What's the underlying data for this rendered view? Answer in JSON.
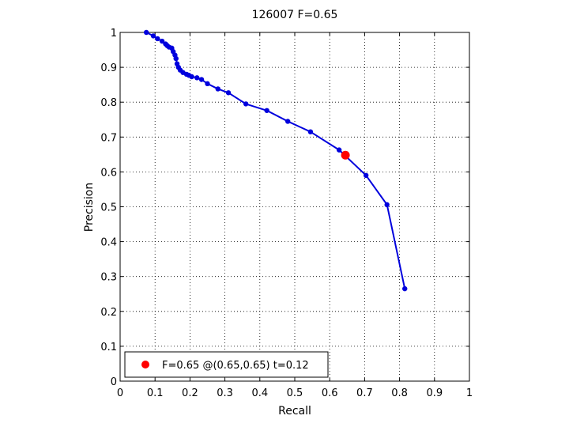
{
  "chart_data": {
    "type": "line",
    "title": "126007 F=0.65",
    "xlabel": "Recall",
    "ylabel": "Precision",
    "xlim": [
      0,
      1
    ],
    "ylim": [
      0,
      1
    ],
    "grid": true,
    "legend_position": "bottom-left",
    "xticks": [
      "0",
      "0.1",
      "0.2",
      "0.3",
      "0.4",
      "0.5",
      "0.6",
      "0.7",
      "0.8",
      "0.9",
      "1"
    ],
    "yticks": [
      "0",
      "0.1",
      "0.2",
      "0.3",
      "0.4",
      "0.5",
      "0.6",
      "0.7",
      "0.8",
      "0.9",
      "1"
    ],
    "series": [
      {
        "color": "#0000dd",
        "x": [
          0.075,
          0.095,
          0.107,
          0.12,
          0.13,
          0.135,
          0.14,
          0.148,
          0.152,
          0.157,
          0.16,
          0.163,
          0.167,
          0.172,
          0.18,
          0.19,
          0.197,
          0.205,
          0.22,
          0.233,
          0.25,
          0.28,
          0.31,
          0.36,
          0.42,
          0.48,
          0.545,
          0.627,
          0.704,
          0.764,
          0.815
        ],
        "y": [
          1.0,
          0.99,
          0.982,
          0.975,
          0.967,
          0.962,
          0.958,
          0.955,
          0.945,
          0.935,
          0.925,
          0.91,
          0.9,
          0.892,
          0.885,
          0.88,
          0.877,
          0.873,
          0.87,
          0.865,
          0.853,
          0.838,
          0.827,
          0.795,
          0.776,
          0.745,
          0.715,
          0.663,
          0.59,
          0.506,
          0.265
        ]
      }
    ],
    "highlight": {
      "x": 0.645,
      "y": 0.648,
      "color": "#ff0000",
      "label": "F=0.65 @(0.65,0.65) t=0.12"
    }
  }
}
